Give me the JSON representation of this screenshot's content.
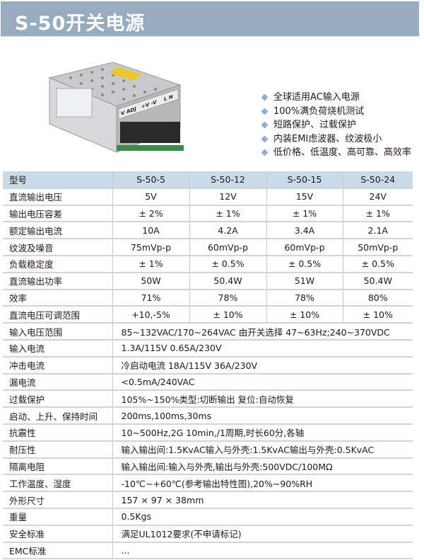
{
  "title": "S-50开关电源",
  "features": [
    "全球适用AC输入电源",
    "100%满负荷烧机测试",
    "短路保护、过载保护",
    "内装EMI虑波器、纹波极小",
    "低价格、低温度、高可靠、高效率"
  ],
  "product_image": {
    "labels": [
      "V ADJ",
      "+V -V",
      "L N"
    ],
    "accent": "#e8c832"
  },
  "table": {
    "header": {
      "label": "型号",
      "models": [
        "S-50-5",
        "S-50-12",
        "S-50-15",
        "S-50-24"
      ]
    },
    "model_rows": [
      {
        "label": "直流输出电压",
        "values": [
          "5V",
          "12V",
          "15V",
          "24V"
        ]
      },
      {
        "label": "输出电压容差",
        "values": [
          "± 2%",
          "± 1%",
          "± 1%",
          "± 1%"
        ]
      },
      {
        "label": "额定输出电流",
        "values": [
          "10A",
          "4.2A",
          "3.4A",
          "2.1A"
        ]
      },
      {
        "label": "纹波及噪音",
        "values": [
          "75mVp-p",
          "60mVp-p",
          "60mVp-p",
          "50mVp-p"
        ]
      },
      {
        "label": "负载稳定度",
        "values": [
          "± 1%",
          "± 0.5%",
          "± 0.5%",
          "± 0.5%"
        ]
      },
      {
        "label": "直流输出功率",
        "values": [
          "50W",
          "50.4W",
          "51W",
          "50.4W"
        ]
      },
      {
        "label": "效率",
        "values": [
          "71%",
          "78%",
          "78%",
          "80%"
        ]
      },
      {
        "label": "直流电压可调范围",
        "values": [
          "+10,-5%",
          "± 10%",
          "± 10%",
          "± 10%"
        ]
      }
    ],
    "common_rows": [
      {
        "label": "输入电压范围",
        "value": "85~132VAC/170~264VAC 由开关选择 47~63Hz;240~370VDC"
      },
      {
        "label": "输入电流",
        "value": "1.3A/115V 0.65A/230V"
      },
      {
        "label": "冲击电流",
        "value": "冷启动电流 18A/115V 36A/230V"
      },
      {
        "label": "漏电流",
        "value": "<0.5mA/240VAC"
      },
      {
        "label": "过载保护",
        "value": "105%~150%类型:切断输出  复位:自动恢复"
      },
      {
        "label": "启动、上升、保持时间",
        "value": "200ms,100ms,30ms"
      },
      {
        "label": "抗震性",
        "value": "10~500Hz,2G 10min,/1周期,时长60分,各轴"
      },
      {
        "label": "耐压性",
        "value": "输入输出间:1.5KvAC输入与外壳:1.5KvAC输出与外壳:0.5KvAC"
      },
      {
        "label": "隔离电阻",
        "value": "输入输出间:输入与外壳,输出与外壳:500VDC/100MΩ"
      },
      {
        "label": "工作温度、湿度",
        "value": "-10℃~+60℃(参考输出特性图),20%~90%RH"
      },
      {
        "label": "外形尺寸",
        "value": "157 × 97 × 38mm"
      },
      {
        "label": "重量",
        "value": "0.5Kgs"
      },
      {
        "label": "安全标准",
        "value": "满足UL1012要求(不申请标记)"
      },
      {
        "label": "EMC标准",
        "value": "..."
      }
    ]
  }
}
